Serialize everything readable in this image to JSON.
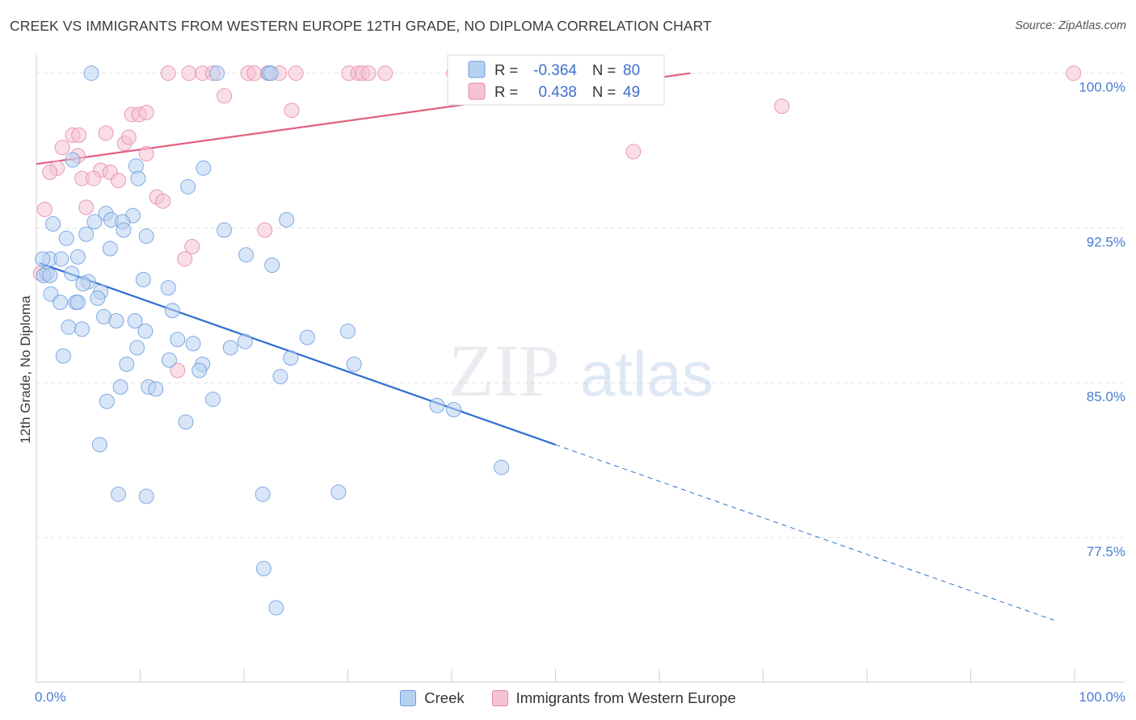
{
  "title": "CREEK VS IMMIGRANTS FROM WESTERN EUROPE 12TH GRADE, NO DIPLOMA CORRELATION CHART",
  "source": "Source: ZipAtlas.com",
  "watermark": {
    "zip": "ZIP",
    "atlas": "atlas"
  },
  "colors": {
    "creek_fill": "#b9d1f0",
    "creek_stroke": "#6b9ee0",
    "creek_line": "#2f6fd0",
    "imm_fill": "#f6c3d3",
    "imm_stroke": "#e58aa8",
    "imm_line": "#e0607f",
    "tick": "#4a7cd3",
    "grid": "#e2e2e2"
  },
  "legend": {
    "rows": [
      {
        "r_label": "R =",
        "r_value": "-0.364",
        "n_label": "N =",
        "n_value": "80"
      },
      {
        "r_label": "R =",
        "r_value": "0.438",
        "n_label": "N =",
        "n_value": "49"
      }
    ]
  },
  "bottom_legend": [
    "Creek",
    "Immigrants from Western Europe"
  ],
  "chart_data": {
    "type": "scatter",
    "xlabel": "",
    "ylabel": "12th Grade, No Diploma",
    "xlim": [
      0,
      100
    ],
    "ylim": [
      70.5,
      101.2
    ],
    "x_tick_labels": [
      "0.0%",
      "100.0%"
    ],
    "y_ticks": [
      100.0,
      92.5,
      85.0,
      77.5
    ],
    "y_tick_labels": [
      "100.0%",
      "92.5%",
      "85.0%",
      "77.5%"
    ],
    "legend_position": "top-center",
    "grid": true,
    "series": [
      {
        "name": "Creek",
        "r": -0.364,
        "n": 80,
        "trend": {
          "x0": 0.3,
          "y0": 90.8,
          "x1": 50.0,
          "y1": 82.0,
          "x_dash_end": 98.0
        },
        "points": [
          [
            5.3,
            100.0
          ],
          [
            17.4,
            100.0
          ],
          [
            22.4,
            100.0
          ],
          [
            22.6,
            100.0
          ],
          [
            3.5,
            95.8
          ],
          [
            9.6,
            95.5
          ],
          [
            16.1,
            95.4
          ],
          [
            9.8,
            94.9
          ],
          [
            14.6,
            94.5
          ],
          [
            6.7,
            93.2
          ],
          [
            7.2,
            92.9
          ],
          [
            9.3,
            93.1
          ],
          [
            5.6,
            92.8
          ],
          [
            8.3,
            92.8
          ],
          [
            24.1,
            92.9
          ],
          [
            1.6,
            92.7
          ],
          [
            8.4,
            92.4
          ],
          [
            18.1,
            92.4
          ],
          [
            2.9,
            92.0
          ],
          [
            10.6,
            92.1
          ],
          [
            4.8,
            92.2
          ],
          [
            7.1,
            91.5
          ],
          [
            1.3,
            91.0
          ],
          [
            22.7,
            90.7
          ],
          [
            2.4,
            91.0
          ],
          [
            4.0,
            91.1
          ],
          [
            20.2,
            91.2
          ],
          [
            0.6,
            91.0
          ],
          [
            1.0,
            90.3
          ],
          [
            0.7,
            90.2
          ],
          [
            1.3,
            90.2
          ],
          [
            3.4,
            90.3
          ],
          [
            5.0,
            89.9
          ],
          [
            10.3,
            90.0
          ],
          [
            4.5,
            89.8
          ],
          [
            12.7,
            89.6
          ],
          [
            6.2,
            89.4
          ],
          [
            1.4,
            89.3
          ],
          [
            5.9,
            89.1
          ],
          [
            2.3,
            88.9
          ],
          [
            3.8,
            88.9
          ],
          [
            4.0,
            88.9
          ],
          [
            13.1,
            88.5
          ],
          [
            6.5,
            88.2
          ],
          [
            7.7,
            88.0
          ],
          [
            9.5,
            88.0
          ],
          [
            3.1,
            87.7
          ],
          [
            4.4,
            87.6
          ],
          [
            10.5,
            87.5
          ],
          [
            30.0,
            87.5
          ],
          [
            13.6,
            87.1
          ],
          [
            15.1,
            86.9
          ],
          [
            20.1,
            87.0
          ],
          [
            26.1,
            87.2
          ],
          [
            9.7,
            86.7
          ],
          [
            18.7,
            86.7
          ],
          [
            2.6,
            86.3
          ],
          [
            12.8,
            86.1
          ],
          [
            16.0,
            85.9
          ],
          [
            24.5,
            86.2
          ],
          [
            30.6,
            85.9
          ],
          [
            8.7,
            85.9
          ],
          [
            15.7,
            85.6
          ],
          [
            23.5,
            85.3
          ],
          [
            17.0,
            84.2
          ],
          [
            8.1,
            84.8
          ],
          [
            10.8,
            84.8
          ],
          [
            11.5,
            84.7
          ],
          [
            6.8,
            84.1
          ],
          [
            38.6,
            83.9
          ],
          [
            40.2,
            83.7
          ],
          [
            14.4,
            83.1
          ],
          [
            6.1,
            82.0
          ],
          [
            44.8,
            80.9
          ],
          [
            7.9,
            79.6
          ],
          [
            10.6,
            79.5
          ],
          [
            21.8,
            79.6
          ],
          [
            29.1,
            79.7
          ],
          [
            21.9,
            76.0
          ],
          [
            23.1,
            74.1
          ]
        ]
      },
      {
        "name": "Immigrants from Western Europe",
        "r": 0.438,
        "n": 49,
        "trend": {
          "x0": 0.0,
          "y0": 95.6,
          "x1": 63.0,
          "y1": 100.0
        },
        "points": [
          [
            12.7,
            100.0
          ],
          [
            14.7,
            100.0
          ],
          [
            16.0,
            100.0
          ],
          [
            17.0,
            100.0
          ],
          [
            20.4,
            100.0
          ],
          [
            21.0,
            100.0
          ],
          [
            22.3,
            100.0
          ],
          [
            23.4,
            100.0
          ],
          [
            25.0,
            100.0
          ],
          [
            30.1,
            100.0
          ],
          [
            31.0,
            100.0
          ],
          [
            31.4,
            100.0
          ],
          [
            32.0,
            100.0
          ],
          [
            33.6,
            100.0
          ],
          [
            40.2,
            100.0
          ],
          [
            47.3,
            100.0
          ],
          [
            47.9,
            100.0
          ],
          [
            99.9,
            100.0
          ],
          [
            18.1,
            98.9
          ],
          [
            24.6,
            98.2
          ],
          [
            71.8,
            98.4
          ],
          [
            9.2,
            98.0
          ],
          [
            9.9,
            98.0
          ],
          [
            10.6,
            98.1
          ],
          [
            6.7,
            97.1
          ],
          [
            3.5,
            97.0
          ],
          [
            4.1,
            97.0
          ],
          [
            8.5,
            96.6
          ],
          [
            8.9,
            96.9
          ],
          [
            2.5,
            96.4
          ],
          [
            4.0,
            96.0
          ],
          [
            10.6,
            96.1
          ],
          [
            57.5,
            96.2
          ],
          [
            2.0,
            95.4
          ],
          [
            1.3,
            95.2
          ],
          [
            6.2,
            95.3
          ],
          [
            7.1,
            95.2
          ],
          [
            4.4,
            94.9
          ],
          [
            5.5,
            94.9
          ],
          [
            7.9,
            94.8
          ],
          [
            11.6,
            94.0
          ],
          [
            12.2,
            93.8
          ],
          [
            0.8,
            93.4
          ],
          [
            4.8,
            93.5
          ],
          [
            22.0,
            92.4
          ],
          [
            15.0,
            91.6
          ],
          [
            14.3,
            91.0
          ],
          [
            0.4,
            90.3
          ],
          [
            13.6,
            85.6
          ]
        ]
      }
    ]
  }
}
